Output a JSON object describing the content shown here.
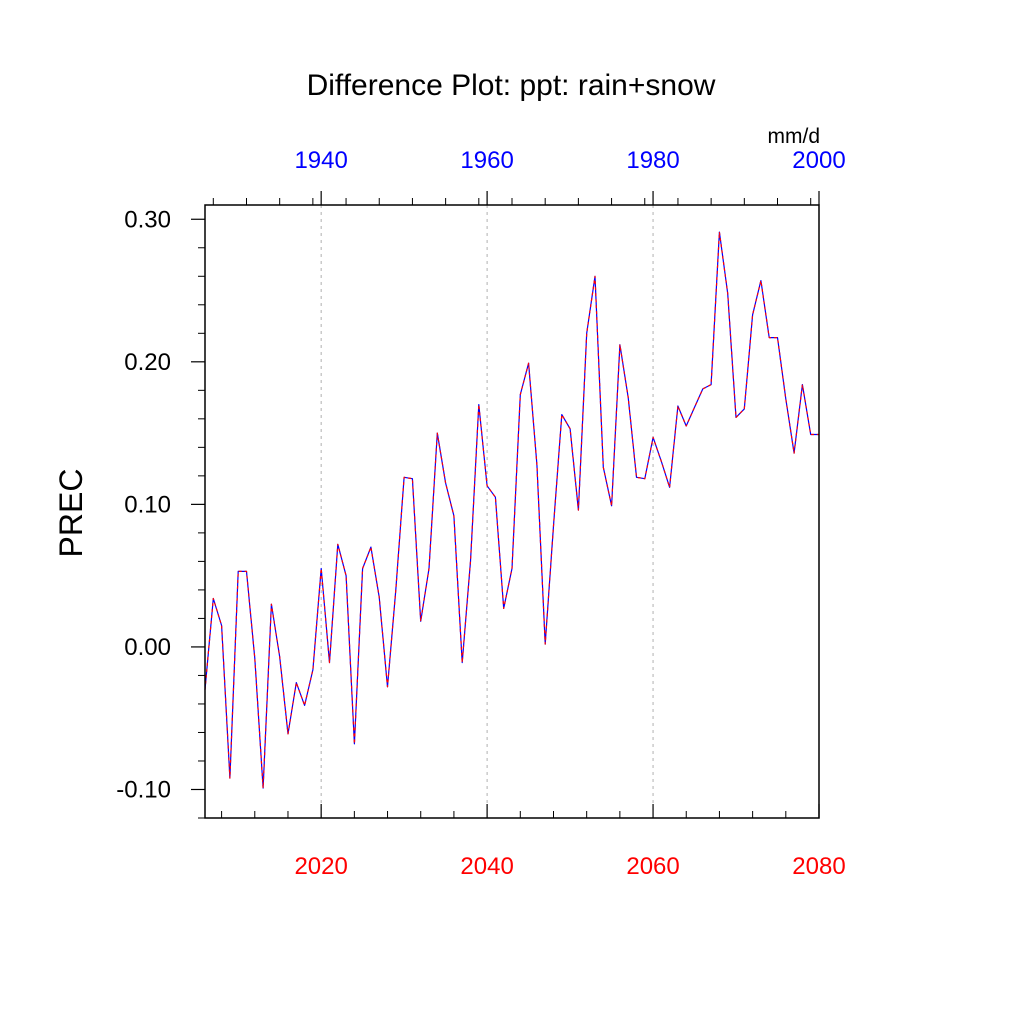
{
  "chart_data": {
    "type": "line",
    "title": "Difference Plot: ppt: rain+snow",
    "ylabel": "PREC",
    "units": "mm/d",
    "xlim": [
      2006,
      2080
    ],
    "ylim": [
      -0.12,
      0.31
    ],
    "yticks": [
      -0.1,
      0.0,
      0.1,
      0.2,
      0.3
    ],
    "ytick_labels": [
      "-0.10",
      "0.00",
      "0.10",
      "0.20",
      "0.30"
    ],
    "bottom_axis": {
      "ticks": [
        2020,
        2040,
        2060,
        2080
      ],
      "tick_labels": [
        "2020",
        "2040",
        "2060",
        "2080"
      ],
      "color": "#ff0000"
    },
    "top_axis": {
      "ticks": [
        1940,
        1960,
        1980,
        2000
      ],
      "tick_labels": [
        "1940",
        "1960",
        "1980",
        "2000"
      ],
      "color": "#0000ff",
      "offset_years": 80
    },
    "grid": "vertical dashed at bottom-axis major ticks",
    "series": [
      {
        "line_colors": [
          "#0000ff",
          "#ff0000"
        ],
        "style": "dashed overlay",
        "x": [
          2006,
          2007,
          2008,
          2009,
          2010,
          2011,
          2012,
          2013,
          2014,
          2015,
          2016,
          2017,
          2018,
          2019,
          2020,
          2021,
          2022,
          2023,
          2024,
          2025,
          2026,
          2027,
          2028,
          2029,
          2030,
          2031,
          2032,
          2033,
          2034,
          2035,
          2036,
          2037,
          2038,
          2039,
          2040,
          2041,
          2042,
          2043,
          2044,
          2045,
          2046,
          2047,
          2048,
          2049,
          2050,
          2051,
          2052,
          2053,
          2054,
          2055,
          2056,
          2057,
          2058,
          2059,
          2060,
          2061,
          2062,
          2063,
          2064,
          2065,
          2066,
          2067,
          2068,
          2069,
          2070,
          2071,
          2072,
          2073,
          2074,
          2075,
          2076,
          2077,
          2078,
          2079,
          2080
        ],
        "values": [
          -0.03,
          0.034,
          0.015,
          -0.092,
          0.053,
          0.053,
          -0.008,
          -0.099,
          0.03,
          -0.007,
          -0.061,
          -0.025,
          -0.041,
          -0.016,
          0.055,
          -0.011,
          0.072,
          0.05,
          -0.068,
          0.055,
          0.07,
          0.035,
          -0.028,
          0.04,
          0.119,
          0.118,
          0.018,
          0.055,
          0.15,
          0.115,
          0.092,
          -0.011,
          0.06,
          0.17,
          0.113,
          0.105,
          0.027,
          0.055,
          0.177,
          0.199,
          0.128,
          0.002,
          0.085,
          0.163,
          0.153,
          0.096,
          0.22,
          0.26,
          0.126,
          0.099,
          0.212,
          0.175,
          0.119,
          0.118,
          0.147,
          0.13,
          0.112,
          0.169,
          0.155,
          0.168,
          0.181,
          0.184,
          0.291,
          0.248,
          0.161,
          0.167,
          0.233,
          0.257,
          0.217,
          0.217,
          0.174,
          0.136,
          0.184,
          0.149,
          0.149
        ]
      }
    ]
  }
}
